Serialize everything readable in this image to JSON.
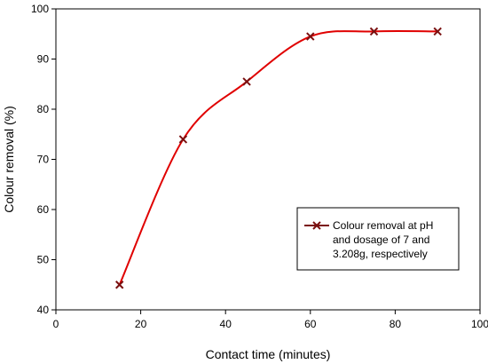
{
  "chart_data": {
    "type": "line",
    "title": "",
    "xlabel": "Contact time (minutes)",
    "ylabel": "Colour removal (%)",
    "xlim": [
      0,
      100
    ],
    "ylim": [
      40,
      100
    ],
    "xticks": [
      "0",
      "20",
      "40",
      "60",
      "80",
      "100"
    ],
    "yticks": [
      "40",
      "50",
      "60",
      "70",
      "80",
      "90",
      "100"
    ],
    "grid": false,
    "legend_position": "center-right",
    "series": [
      {
        "name": "Colour removal at pH and dosage of 7 and 3.208g, respectively",
        "legend_lines": [
          "Colour removal at pH",
          "and dosage of 7 and",
          "3.208g, respectively"
        ],
        "line_color": "#e00000",
        "marker_color": "#7a1010",
        "marker": "x",
        "x": [
          15,
          30,
          45,
          60,
          75,
          90
        ],
        "y": [
          45,
          74,
          85.5,
          94.5,
          95.5,
          95.5
        ]
      }
    ]
  }
}
